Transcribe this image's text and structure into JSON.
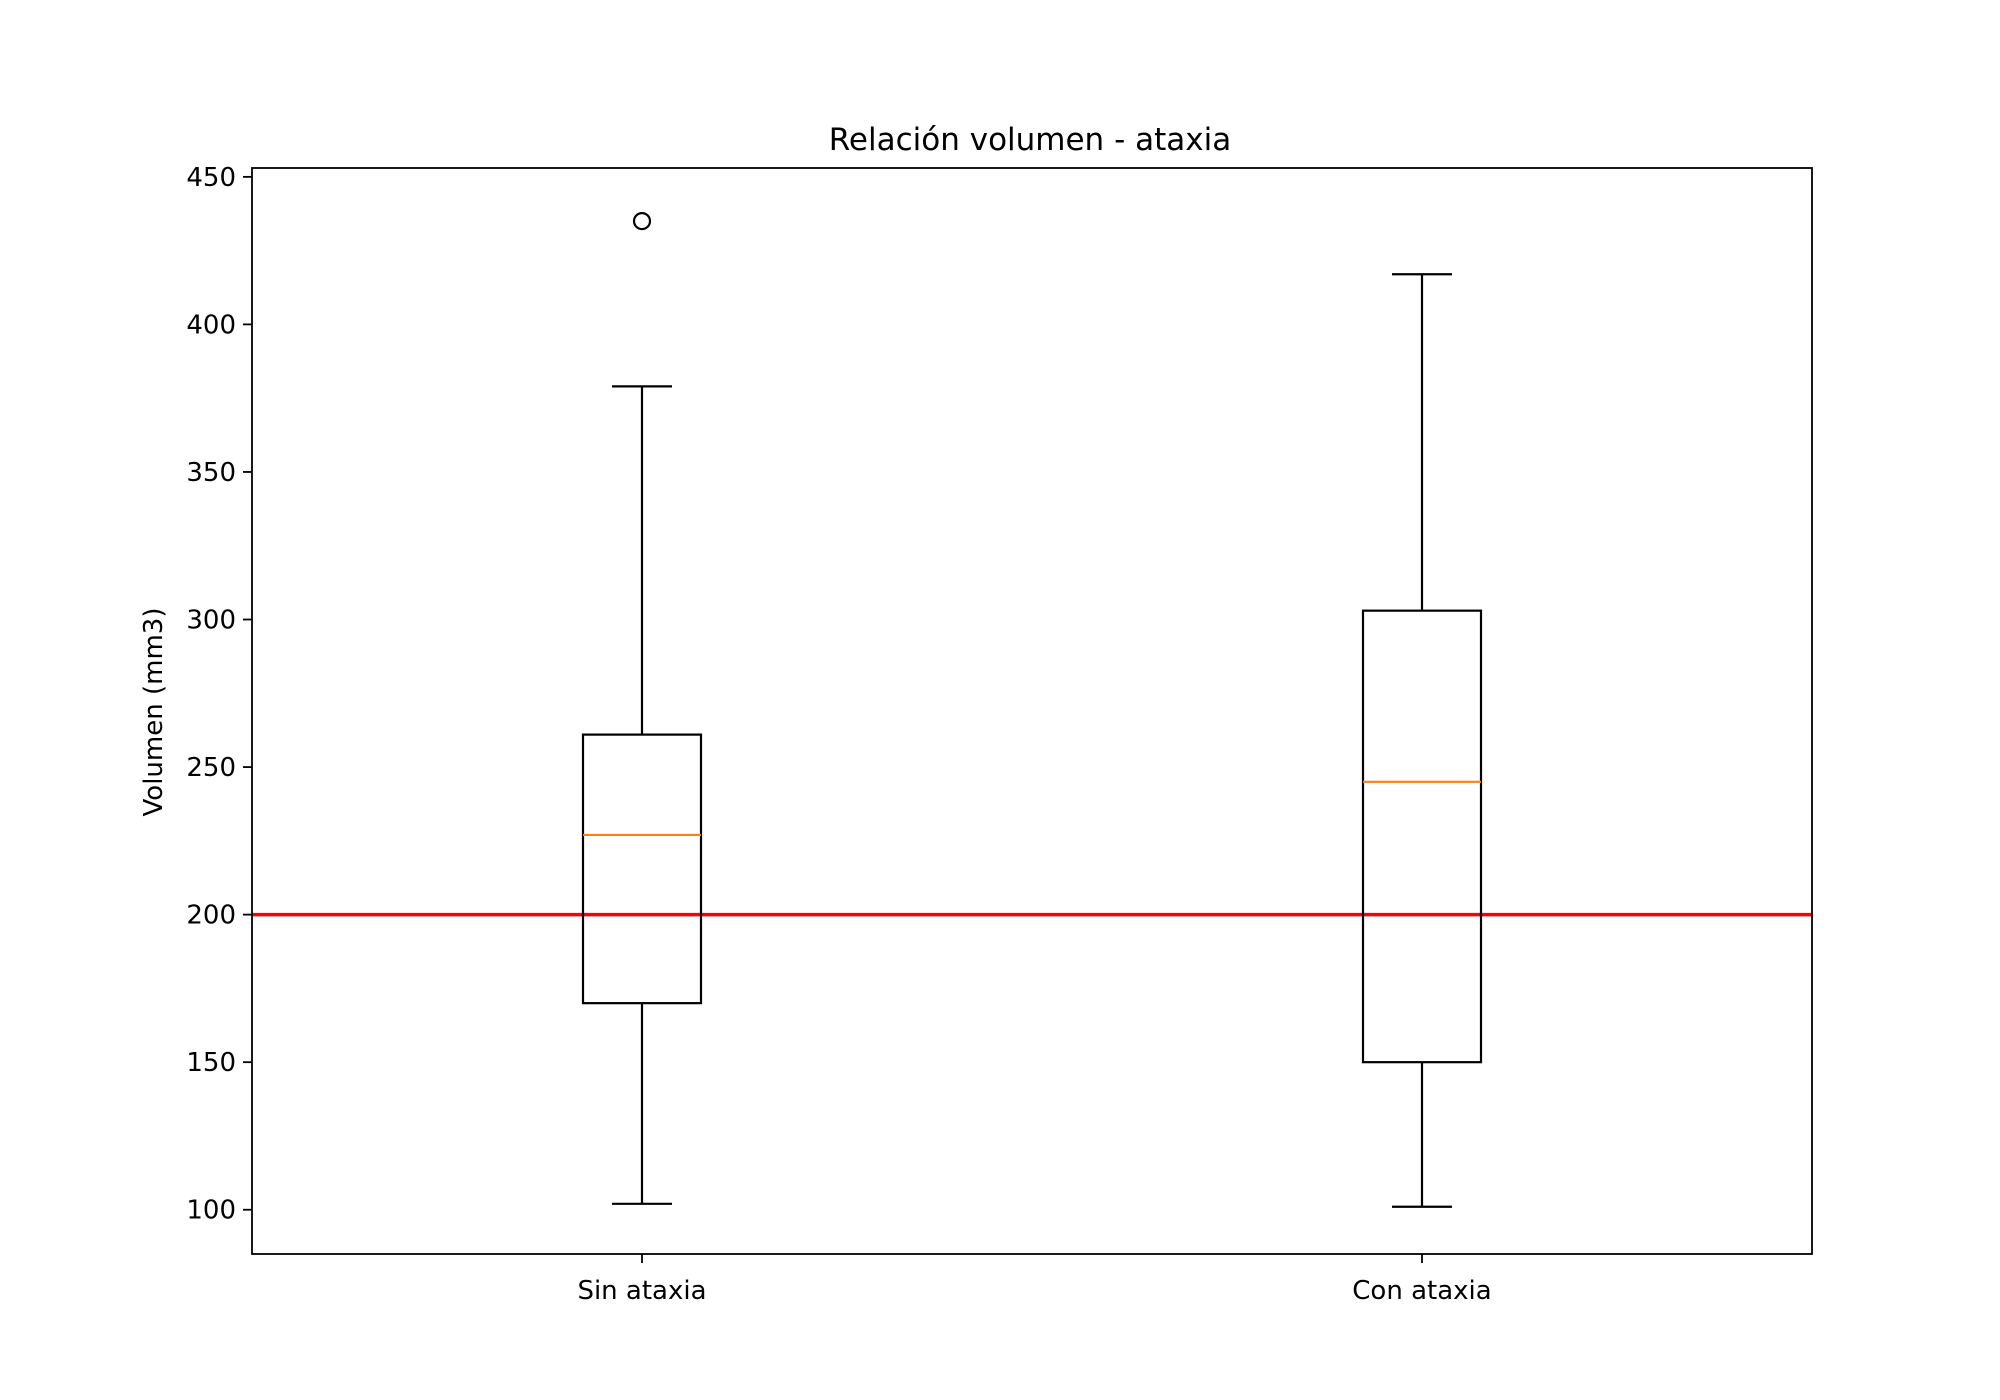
{
  "chart_data": {
    "type": "boxplot",
    "title": "Relación volumen - ataxia",
    "xlabel": "",
    "ylabel": "Volumen (mm3)",
    "ylim": [
      85,
      453
    ],
    "yticks": [
      100,
      150,
      200,
      250,
      300,
      350,
      400,
      450
    ],
    "grid": false,
    "categories": [
      "Sin ataxia",
      "Con ataxia"
    ],
    "boxes": [
      {
        "category": "Sin ataxia",
        "whisker_low": 102,
        "q1": 170,
        "median": 227,
        "q3": 261,
        "whisker_high": 379,
        "outliers": [
          435
        ]
      },
      {
        "category": "Con ataxia",
        "whisker_low": 101,
        "q1": 150,
        "median": 245,
        "q3": 303,
        "whisker_high": 417,
        "outliers": []
      }
    ],
    "reference_line": {
      "y": 200,
      "color": "#ff0000"
    },
    "colors": {
      "box": "#000000",
      "median": "#ff7f0e",
      "reference": "#ff0000"
    }
  }
}
